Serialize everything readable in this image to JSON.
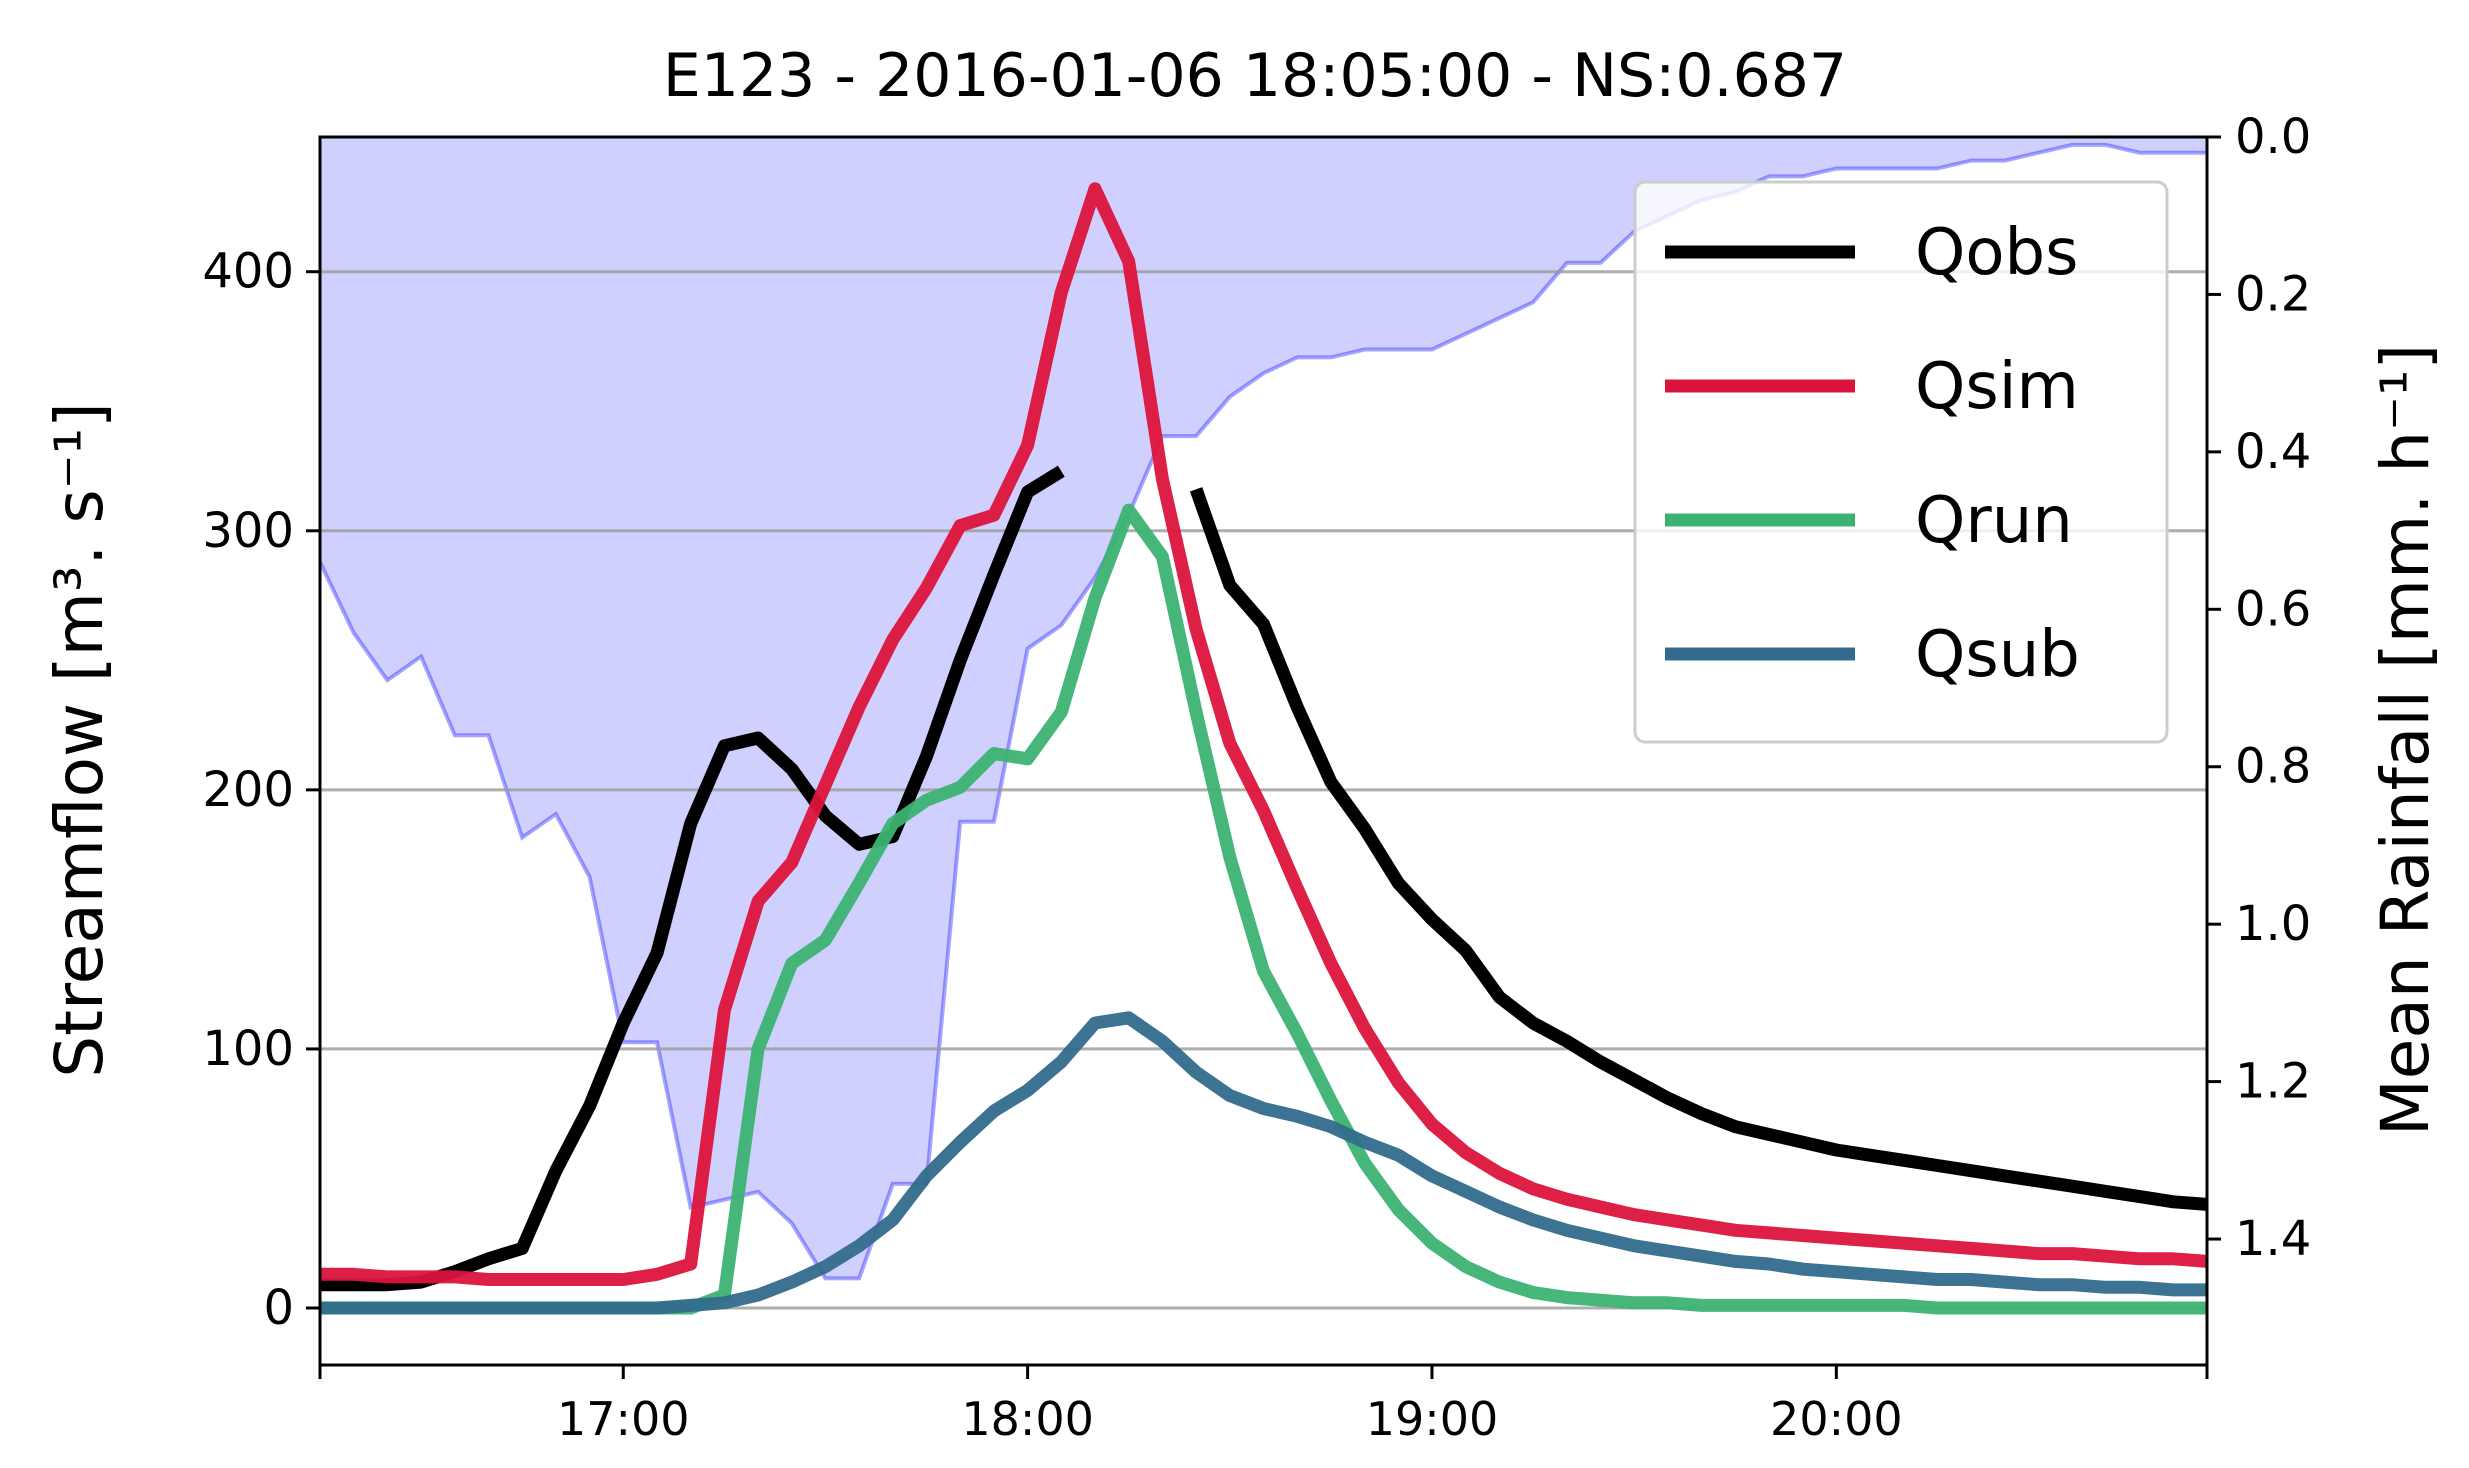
{
  "chart_data": {
    "type": "line",
    "title": "E123 - 2016-01-06 18:05:00 - NS:0.687",
    "ylabel": "Streamflow [m³. s⁻¹]",
    "y2label": "Mean Rainfall [mm. h⁻¹]",
    "xlabel": "",
    "xlim": [
      "16:15",
      "20:55"
    ],
    "ylim": [
      -22,
      452
    ],
    "y2lim": [
      0.0,
      1.56
    ],
    "y2_inverted": true,
    "grid": "horizontal",
    "legend_position": "top-right",
    "x_ticks": [
      "17:00",
      "18:00",
      "19:00",
      "20:00"
    ],
    "y_ticks": [
      "0",
      "100",
      "200",
      "300",
      "400"
    ],
    "y2_ticks": [
      "0.0",
      "0.2",
      "0.4",
      "0.6",
      "0.8",
      "1.0",
      "1.2",
      "1.4"
    ],
    "rainfall": {
      "color": "#0000ff",
      "fill": "#d0d0ff",
      "x": [
        "16:15",
        "16:20",
        "16:25",
        "16:30",
        "16:35",
        "16:40",
        "16:45",
        "16:50",
        "16:55",
        "17:00",
        "17:05",
        "17:10",
        "17:15",
        "17:20",
        "17:25",
        "17:30",
        "17:35",
        "17:40",
        "17:45",
        "17:50",
        "17:55",
        "18:00",
        "18:05",
        "18:10",
        "18:15",
        "18:20",
        "18:25",
        "18:30",
        "18:35",
        "18:40",
        "18:45",
        "18:50",
        "18:55",
        "19:00",
        "19:05",
        "19:10",
        "19:15",
        "19:20",
        "19:25",
        "19:30",
        "19:35",
        "19:40",
        "19:45",
        "19:50",
        "19:55",
        "20:00",
        "20:05",
        "20:10",
        "20:15",
        "20:20",
        "20:25",
        "20:30",
        "20:35",
        "20:40",
        "20:45",
        "20:50",
        "20:55"
      ],
      "values": [
        0.54,
        0.63,
        0.69,
        0.66,
        0.76,
        0.76,
        0.89,
        0.86,
        0.94,
        1.15,
        1.15,
        1.36,
        1.35,
        1.34,
        1.38,
        1.45,
        1.45,
        1.33,
        1.33,
        0.87,
        0.87,
        0.65,
        0.62,
        0.56,
        0.48,
        0.38,
        0.38,
        0.33,
        0.3,
        0.28,
        0.28,
        0.27,
        0.27,
        0.27,
        0.25,
        0.23,
        0.21,
        0.16,
        0.16,
        0.12,
        0.1,
        0.08,
        0.07,
        0.05,
        0.05,
        0.04,
        0.04,
        0.04,
        0.04,
        0.03,
        0.03,
        0.02,
        0.01,
        0.01,
        0.02,
        0.02,
        0.02
      ]
    },
    "series": [
      {
        "name": "Qobs",
        "color": "#000000",
        "x": [
          "16:15",
          "16:20",
          "16:25",
          "16:30",
          "16:35",
          "16:40",
          "16:45",
          "16:50",
          "16:55",
          "17:00",
          "17:05",
          "17:10",
          "17:15",
          "17:20",
          "17:25",
          "17:30",
          "17:35",
          "17:40",
          "17:45",
          "17:50",
          "17:55",
          "18:00",
          "18:05",
          "18:10",
          "18:15",
          "18:20",
          "18:25",
          "18:30",
          "18:35",
          "18:40",
          "18:45",
          "18:50",
          "18:55",
          "19:00",
          "19:05",
          "19:10",
          "19:15",
          "19:20",
          "19:25",
          "19:30",
          "19:35",
          "19:40",
          "19:45",
          "19:50",
          "19:55",
          "20:00",
          "20:05",
          "20:10",
          "20:15",
          "20:20",
          "20:25",
          "20:30",
          "20:35",
          "20:40",
          "20:45",
          "20:50",
          "20:55"
        ],
        "values": [
          9,
          9,
          9,
          10,
          14,
          19,
          23,
          53,
          78,
          110,
          137,
          187,
          217,
          220,
          208,
          190,
          179,
          182,
          213,
          250,
          283,
          315,
          323,
          null,
          null,
          null,
          316,
          279,
          264,
          232,
          203,
          185,
          164,
          150,
          138,
          120,
          110,
          103,
          95,
          88,
          81,
          75,
          70,
          67,
          64,
          61,
          59,
          57,
          55,
          53,
          51,
          49,
          47,
          45,
          43,
          41,
          40
        ]
      },
      {
        "name": "Qsim",
        "color": "#dc143c",
        "x": [
          "16:15",
          "16:20",
          "16:25",
          "16:30",
          "16:35",
          "16:40",
          "16:45",
          "16:50",
          "16:55",
          "17:00",
          "17:05",
          "17:10",
          "17:15",
          "17:20",
          "17:25",
          "17:30",
          "17:35",
          "17:40",
          "17:45",
          "17:50",
          "17:55",
          "18:00",
          "18:05",
          "18:10",
          "18:15",
          "18:20",
          "18:25",
          "18:30",
          "18:35",
          "18:40",
          "18:45",
          "18:50",
          "18:55",
          "19:00",
          "19:05",
          "19:10",
          "19:15",
          "19:20",
          "19:25",
          "19:30",
          "19:35",
          "19:40",
          "19:45",
          "19:50",
          "19:55",
          "20:00",
          "20:05",
          "20:10",
          "20:15",
          "20:20",
          "20:25",
          "20:30",
          "20:35",
          "20:40",
          "20:45",
          "20:50",
          "20:55"
        ],
        "values": [
          13,
          13,
          12,
          12,
          12,
          11,
          11,
          11,
          11,
          11,
          13,
          17,
          115,
          157,
          172,
          202,
          232,
          258,
          278,
          302,
          306,
          333,
          392,
          432,
          404,
          320,
          262,
          218,
          192,
          162,
          133,
          108,
          87,
          71,
          60,
          52,
          46,
          42,
          39,
          36,
          34,
          32,
          30,
          29,
          28,
          27,
          26,
          25,
          24,
          23,
          22,
          21,
          21,
          20,
          19,
          19,
          18
        ]
      },
      {
        "name": "Qrun",
        "color": "#3cb371",
        "x": [
          "16:15",
          "16:20",
          "16:25",
          "16:30",
          "16:35",
          "16:40",
          "16:45",
          "16:50",
          "16:55",
          "17:00",
          "17:05",
          "17:10",
          "17:15",
          "17:20",
          "17:25",
          "17:30",
          "17:35",
          "17:40",
          "17:45",
          "17:50",
          "17:55",
          "18:00",
          "18:05",
          "18:10",
          "18:15",
          "18:20",
          "18:25",
          "18:30",
          "18:35",
          "18:40",
          "18:45",
          "18:50",
          "18:55",
          "19:00",
          "19:05",
          "19:10",
          "19:15",
          "19:20",
          "19:25",
          "19:30",
          "19:35",
          "19:40",
          "19:45",
          "19:50",
          "19:55",
          "20:00",
          "20:05",
          "20:10",
          "20:15",
          "20:20",
          "20:25",
          "20:30",
          "20:35",
          "20:40",
          "20:45",
          "20:50",
          "20:55"
        ],
        "values": [
          0,
          0,
          0,
          0,
          0,
          0,
          0,
          0,
          0,
          0,
          0,
          0,
          5,
          100,
          133,
          142,
          164,
          187,
          196,
          201,
          214,
          212,
          230,
          274,
          308,
          290,
          230,
          174,
          130,
          106,
          80,
          56,
          38,
          25,
          16,
          10,
          6,
          4,
          3,
          2,
          2,
          1,
          1,
          1,
          1,
          1,
          1,
          1,
          0,
          0,
          0,
          0,
          0,
          0,
          0,
          0,
          0
        ]
      },
      {
        "name": "Qsub",
        "color": "#336b8c",
        "x": [
          "16:15",
          "16:20",
          "16:25",
          "16:30",
          "16:35",
          "16:40",
          "16:45",
          "16:50",
          "16:55",
          "17:00",
          "17:05",
          "17:10",
          "17:15",
          "17:20",
          "17:25",
          "17:30",
          "17:35",
          "17:40",
          "17:45",
          "17:50",
          "17:55",
          "18:00",
          "18:05",
          "18:10",
          "18:15",
          "18:20",
          "18:25",
          "18:30",
          "18:35",
          "18:40",
          "18:45",
          "18:50",
          "18:55",
          "19:00",
          "19:05",
          "19:10",
          "19:15",
          "19:20",
          "19:25",
          "19:30",
          "19:35",
          "19:40",
          "19:45",
          "19:50",
          "19:55",
          "20:00",
          "20:05",
          "20:10",
          "20:15",
          "20:20",
          "20:25",
          "20:30",
          "20:35",
          "20:40",
          "20:45",
          "20:50",
          "20:55"
        ],
        "values": [
          0,
          0,
          0,
          0,
          0,
          0,
          0,
          0,
          0,
          0,
          0,
          1,
          2,
          5,
          10,
          16,
          24,
          34,
          51,
          64,
          76,
          84,
          95,
          110,
          112,
          103,
          91,
          82,
          77,
          74,
          70,
          64,
          59,
          51,
          45,
          39,
          34,
          30,
          27,
          24,
          22,
          20,
          18,
          17,
          15,
          14,
          13,
          12,
          11,
          11,
          10,
          9,
          9,
          8,
          8,
          7,
          7
        ]
      }
    ]
  }
}
